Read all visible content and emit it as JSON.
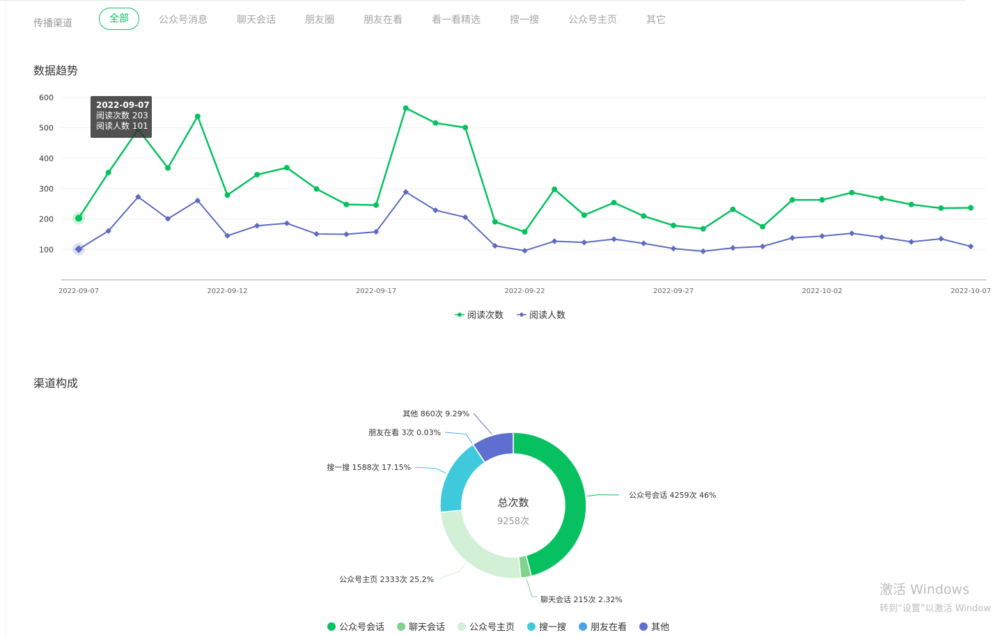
{
  "channel_bar": {
    "label": "传播渠道",
    "tabs": [
      "全部",
      "公众号消息",
      "聊天会话",
      "朋友圈",
      "朋友在看",
      "看一看精选",
      "搜一搜",
      "公众号主页",
      "其它"
    ],
    "active_index": 0
  },
  "colors": {
    "accent": "#07c160",
    "read_count": "#07c160",
    "read_users": "#5c6bc0",
    "pie": [
      "#07c160",
      "#7fd48c",
      "#d2f0d5",
      "#3ec9dd",
      "#4aa3e8",
      "#5f6fcf"
    ]
  },
  "trend_section": {
    "title": "数据趋势",
    "tooltip": {
      "date": "2022-09-07",
      "line1": "阅读次数 203",
      "line2": "阅读人数 101"
    }
  },
  "composition_section": {
    "title": "渠道构成",
    "center_title": "总次数",
    "center_value": "9258次"
  },
  "watermark": {
    "line1": "激活 Windows",
    "line2": "转到“设置”以激活 Window"
  },
  "chart_data": [
    {
      "type": "line",
      "ylim": [
        0,
        600
      ],
      "yticks": [
        100,
        200,
        300,
        400,
        500,
        600
      ],
      "grid": true,
      "legend_position": "bottom-center",
      "x": [
        "2022-09-07",
        "2022-09-08",
        "2022-09-09",
        "2022-09-10",
        "2022-09-11",
        "2022-09-12",
        "2022-09-13",
        "2022-09-14",
        "2022-09-15",
        "2022-09-16",
        "2022-09-17",
        "2022-09-18",
        "2022-09-19",
        "2022-09-20",
        "2022-09-21",
        "2022-09-22",
        "2022-09-23",
        "2022-09-24",
        "2022-09-25",
        "2022-09-26",
        "2022-09-27",
        "2022-09-28",
        "2022-09-29",
        "2022-09-30",
        "2022-10-01",
        "2022-10-02",
        "2022-10-03",
        "2022-10-04",
        "2022-10-05",
        "2022-10-06",
        "2022-10-07"
      ],
      "xtick_labels": [
        "2022-09-07",
        "2022-09-12",
        "2022-09-17",
        "2022-09-22",
        "2022-09-27",
        "2022-10-02",
        "2022-10-07"
      ],
      "series": [
        {
          "name": "阅读次数",
          "values": [
            203,
            353,
            495,
            368,
            538,
            279,
            346,
            369,
            299,
            248,
            246,
            565,
            516,
            501,
            191,
            158,
            298,
            213,
            254,
            210,
            179,
            168,
            232,
            175,
            263,
            263,
            287,
            268,
            248,
            236,
            237
          ]
        },
        {
          "name": "阅读人数",
          "values": [
            101,
            161,
            273,
            201,
            261,
            145,
            178,
            186,
            151,
            150,
            158,
            289,
            229,
            206,
            112,
            96,
            127,
            123,
            134,
            120,
            103,
            94,
            105,
            110,
            138,
            144,
            153,
            140,
            125,
            135,
            110
          ]
        }
      ]
    },
    {
      "type": "pie",
      "donut": true,
      "legend_position": "bottom-center",
      "slices": [
        {
          "name": "公众号会话",
          "value": 4259,
          "label": "公众号会话 4259次 46%"
        },
        {
          "name": "聊天会话",
          "value": 215,
          "label": "聊天会话 215次 2.32%"
        },
        {
          "name": "公众号主页",
          "value": 2333,
          "label": "公众号主页 2333次 25.2%"
        },
        {
          "name": "搜一搜",
          "value": 1588,
          "label": "搜一搜 1588次 17.15%"
        },
        {
          "name": "朋友在看",
          "value": 3,
          "label": "朋友在看 3次 0.03%"
        },
        {
          "name": "其他",
          "value": 860,
          "label": "其他 860次 9.29%"
        }
      ]
    }
  ]
}
